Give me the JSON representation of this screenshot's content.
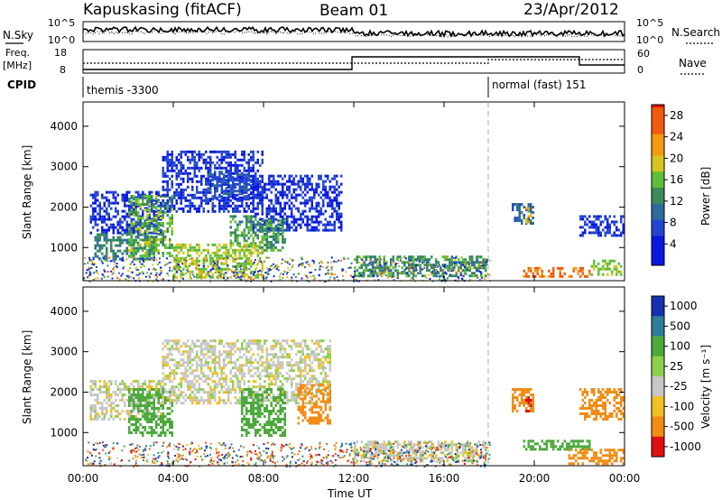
{
  "header": {
    "station": "Kapuskasing (fitACF)",
    "beam": "Beam 01",
    "date": "23/Apr/2012"
  },
  "summary": {
    "left_top_label": "N.Sky",
    "left_top_ticks": [
      "10^5",
      "10^0"
    ],
    "right_top_label": "N.Search",
    "right_top_ticks": [
      "10^5",
      "10^0"
    ],
    "freq_label_1": "Freq.",
    "freq_label_2": "[MHz]",
    "freq_ticks": [
      "18",
      "8"
    ],
    "nave_label": "Nave",
    "nave_ticks": [
      "60",
      "0"
    ],
    "cpid_label": "CPID",
    "cpid_left": "themis -3300",
    "cpid_right": "normal (fast) 151"
  },
  "axes": {
    "xlabel": "Time UT",
    "xticks": [
      "00:00",
      "04:00",
      "08:00",
      "12:00",
      "16:00",
      "20:00",
      "00:00"
    ],
    "ylabel": "Slant Range [km]",
    "yticks": [
      "1000",
      "2000",
      "3000",
      "4000"
    ]
  },
  "colorbars": {
    "power_label": "Power [dB]",
    "power_ticks": [
      "28",
      "24",
      "20",
      "16",
      "12",
      "8",
      "4"
    ],
    "velocity_label": "Velocity [m s⁻¹]",
    "velocity_ticks": [
      "1000",
      "500",
      "100",
      "25",
      "-25",
      "-100",
      "-500",
      "-1000"
    ]
  },
  "chart_data": [
    {
      "type": "heatmap",
      "title": "Power",
      "xlabel": "Time UT",
      "ylabel": "Slant Range [km]",
      "x_range_hours": [
        0,
        24
      ],
      "y_range_km": [
        180,
        4600
      ],
      "colorbar": {
        "label": "Power [dB]",
        "range": [
          0,
          30
        ],
        "ticks": [
          4,
          8,
          12,
          16,
          20,
          24,
          28
        ]
      },
      "regions": [
        {
          "t": [
            0.3,
            3.5
          ],
          "r": [
            1350,
            2400
          ],
          "value": 6
        },
        {
          "t": [
            0.5,
            3.2
          ],
          "r": [
            700,
            1350
          ],
          "value": 12
        },
        {
          "t": [
            2.0,
            4.0
          ],
          "r": [
            800,
            2300
          ],
          "value": 16
        },
        {
          "t": [
            3.5,
            8.0
          ],
          "r": [
            1900,
            3400
          ],
          "value": 6
        },
        {
          "t": [
            5.5,
            7.5
          ],
          "r": [
            2200,
            2900
          ],
          "value": 8
        },
        {
          "t": [
            7.5,
            11.5
          ],
          "r": [
            1400,
            2800
          ],
          "value": 6
        },
        {
          "t": [
            6.5,
            7.8
          ],
          "r": [
            1000,
            1800
          ],
          "value": 14
        },
        {
          "t": [
            7.8,
            9.0
          ],
          "r": [
            900,
            1700
          ],
          "value": 14
        },
        {
          "t": [
            4.0,
            8.0
          ],
          "r": [
            250,
            1100
          ],
          "value": 18
        },
        {
          "t": [
            12.0,
            17.9
          ],
          "r": [
            300,
            800
          ],
          "value": 14
        },
        {
          "t": [
            19.0,
            20.0
          ],
          "r": [
            1600,
            2100
          ],
          "value": 10
        },
        {
          "t": [
            19.6,
            19.9
          ],
          "r": [
            1600,
            2000
          ],
          "value": 20
        },
        {
          "t": [
            19.5,
            22.5
          ],
          "r": [
            300,
            520
          ],
          "value": 26
        },
        {
          "t": [
            22.0,
            24.0
          ],
          "r": [
            1300,
            1800
          ],
          "value": 6
        },
        {
          "t": [
            22.5,
            24.0
          ],
          "r": [
            350,
            700
          ],
          "value": 18
        }
      ]
    },
    {
      "type": "heatmap",
      "title": "Velocity",
      "xlabel": "Time UT",
      "ylabel": "Slant Range [km]",
      "x_range_hours": [
        0,
        24
      ],
      "y_range_km": [
        180,
        4600
      ],
      "colorbar": {
        "label": "Velocity [m s⁻¹]",
        "range": [
          -1000,
          1000
        ],
        "ticks": [
          1000,
          500,
          100,
          25,
          -25,
          -100,
          -500,
          -1000
        ]
      },
      "regions": [
        {
          "t": [
            0.3,
            3.5
          ],
          "r": [
            1300,
            2300
          ],
          "value": 0
        },
        {
          "t": [
            2.0,
            4.0
          ],
          "r": [
            900,
            2100
          ],
          "value": 200
        },
        {
          "t": [
            3.5,
            11.0
          ],
          "r": [
            1700,
            3300
          ],
          "value": 0
        },
        {
          "t": [
            7.0,
            9.0
          ],
          "r": [
            900,
            2100
          ],
          "value": 250
        },
        {
          "t": [
            9.5,
            11.0
          ],
          "r": [
            1200,
            2200
          ],
          "value": -150
        },
        {
          "t": [
            12.0,
            17.9
          ],
          "r": [
            300,
            800
          ],
          "value": 0
        },
        {
          "t": [
            19.0,
            20.0
          ],
          "r": [
            1500,
            2100
          ],
          "value": -400
        },
        {
          "t": [
            19.6,
            19.9
          ],
          "r": [
            1500,
            1900
          ],
          "value": -900
        },
        {
          "t": [
            19.5,
            22.5
          ],
          "r": [
            580,
            820
          ],
          "value": 200
        },
        {
          "t": [
            21.5,
            24.0
          ],
          "r": [
            250,
            600
          ],
          "value": -300
        },
        {
          "t": [
            22.0,
            24.0
          ],
          "r": [
            1300,
            2100
          ],
          "value": -150
        }
      ]
    }
  ]
}
